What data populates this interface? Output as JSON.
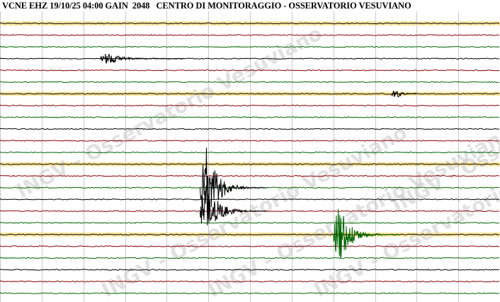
{
  "header": {
    "station_line": "VCNE EHZ 19/10/25 04:00 GAIN  2048   CENTRO DI MONITORAGGIO - OSSERVATORIO VESUVIANO"
  },
  "watermark": {
    "text": "INGV - Osservatorio Vesuviano",
    "color": "#c8c8c8"
  },
  "colors": {
    "background": "#ffffff",
    "trace_black": "#000000",
    "trace_red": "#8b0000",
    "trace_green": "#006400",
    "highlight": "#ffe8a0",
    "grid": "#c8c8c8"
  },
  "trace_colors": [
    "black",
    "red",
    "green"
  ],
  "row_count": 25,
  "highlighted_rows": [
    0,
    6,
    12,
    18
  ],
  "events": [
    {
      "row": 3,
      "color": "black",
      "start_min": 12,
      "duration_min": 10,
      "amplitude": 0.55
    },
    {
      "row": 6,
      "color": "black",
      "start_min": 47,
      "duration_min": 3,
      "amplitude": 0.9
    },
    {
      "row": 14,
      "color": "black",
      "start_min": 24,
      "duration_min": 8,
      "amplitude": 3.8
    },
    {
      "row": 16,
      "color": "black",
      "start_min": 24,
      "duration_min": 8,
      "amplitude": 2.8
    },
    {
      "row": 18,
      "color": "green",
      "start_min": 40,
      "duration_min": 8,
      "amplitude": 2.6
    }
  ]
}
